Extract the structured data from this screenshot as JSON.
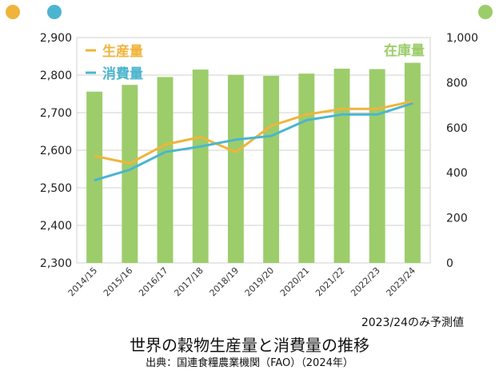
{
  "colors": {
    "production": "#f0b43c",
    "consumption": "#4bb5cf",
    "stock": "#9ccd6a",
    "grid": "#d0d0d0"
  },
  "icons": [
    "orange-dot-icon",
    "blue-dot-icon",
    "green-dot-icon"
  ],
  "note": "2023/24のみ予測値",
  "title": "世界の穀物生産量と消費量の推移",
  "source": "出典：国連食糧農業機関（FAO）（2024年）",
  "chart_data": {
    "type": "bar+line",
    "categories": [
      "2014/15",
      "2015/16",
      "2016/17",
      "2017/18",
      "2018/19",
      "2019/20",
      "2020/21",
      "2021/22",
      "2022/23",
      "2023/24"
    ],
    "bars": {
      "name": "在庫量",
      "axis": "right",
      "values": [
        760,
        790,
        825,
        858,
        835,
        830,
        840,
        862,
        860,
        888
      ]
    },
    "series": [
      {
        "name": "生産量",
        "axis": "left",
        "values": [
          2585,
          2565,
          2615,
          2635,
          2595,
          2665,
          2695,
          2710,
          2710,
          2730
        ]
      },
      {
        "name": "消費量",
        "axis": "left",
        "values": [
          2520,
          2548,
          2595,
          2610,
          2628,
          2638,
          2680,
          2695,
          2695,
          2725
        ]
      }
    ],
    "yleft": {
      "lim": [
        2300,
        2900
      ],
      "ticks": [
        "2,300",
        "2,400",
        "2,500",
        "2,600",
        "2,700",
        "2,800",
        "2,900"
      ]
    },
    "yright": {
      "lim": [
        0,
        1000
      ],
      "ticks": [
        "0",
        "200",
        "400",
        "600",
        "800",
        "1,000"
      ]
    },
    "grid": true,
    "legend": "top-left"
  }
}
